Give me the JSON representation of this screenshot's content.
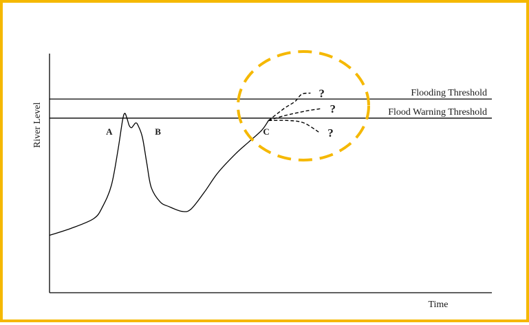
{
  "chart_data": {
    "type": "line",
    "title": "",
    "xlabel": "Time",
    "ylabel": "River Level",
    "grid": false,
    "legend": "none",
    "thresholds": [
      {
        "label": "Flooding Threshold",
        "level": 0.81
      },
      {
        "label": "Flood Warning Threshold",
        "level": 0.73
      }
    ],
    "series": [
      {
        "values": [
          [
            0.0,
            0.24
          ],
          [
            0.05,
            0.27
          ],
          [
            0.1,
            0.31
          ],
          [
            0.12,
            0.36
          ],
          [
            0.14,
            0.45
          ],
          [
            0.155,
            0.6
          ],
          [
            0.165,
            0.72
          ],
          [
            0.17,
            0.75
          ],
          [
            0.175,
            0.73
          ],
          [
            0.18,
            0.7
          ],
          [
            0.185,
            0.69
          ],
          [
            0.19,
            0.7
          ],
          [
            0.195,
            0.71
          ],
          [
            0.2,
            0.7
          ],
          [
            0.21,
            0.65
          ],
          [
            0.22,
            0.54
          ],
          [
            0.23,
            0.44
          ],
          [
            0.25,
            0.38
          ],
          [
            0.27,
            0.36
          ],
          [
            0.3,
            0.34
          ],
          [
            0.32,
            0.35
          ],
          [
            0.35,
            0.42
          ],
          [
            0.38,
            0.5
          ],
          [
            0.42,
            0.58
          ],
          [
            0.45,
            0.63
          ],
          [
            0.48,
            0.68
          ],
          [
            0.495,
            0.72
          ]
        ]
      }
    ],
    "forecasts": [
      {
        "label": "?",
        "values": [
          [
            0.495,
            0.72
          ],
          [
            0.53,
            0.77
          ],
          [
            0.555,
            0.8
          ],
          [
            0.57,
            0.83
          ],
          [
            0.59,
            0.835
          ]
        ]
      },
      {
        "label": "?",
        "values": [
          [
            0.495,
            0.72
          ],
          [
            0.53,
            0.74
          ],
          [
            0.58,
            0.76
          ],
          [
            0.615,
            0.77
          ]
        ]
      },
      {
        "label": "?",
        "values": [
          [
            0.495,
            0.72
          ],
          [
            0.54,
            0.72
          ],
          [
            0.575,
            0.71
          ],
          [
            0.61,
            0.67
          ]
        ]
      }
    ],
    "annotations": [
      {
        "label": "A",
        "x": 0.135,
        "y": 0.675
      },
      {
        "label": "B",
        "x": 0.245,
        "y": 0.675
      },
      {
        "label": "C",
        "x": 0.49,
        "y": 0.675
      }
    ],
    "highlight_color": "#f5b800",
    "border_color": "#f5b800"
  }
}
